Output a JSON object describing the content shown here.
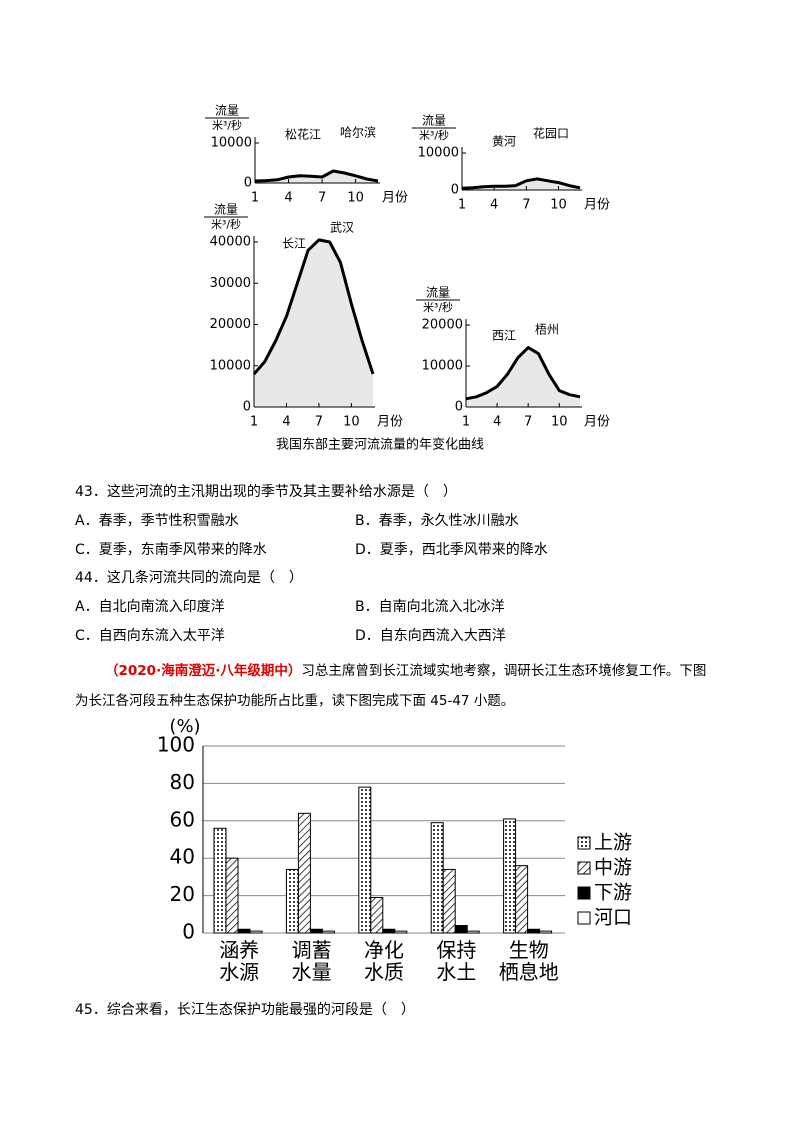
{
  "chart_data": [
    {
      "type": "line",
      "ylabel": "流量",
      "yunit": "米³/秒",
      "xlabel": "月份",
      "annotations": [
        "松花江",
        "哈尔滨"
      ],
      "x": [
        1,
        2,
        3,
        4,
        5,
        6,
        7,
        8,
        9,
        10,
        11,
        12
      ],
      "xlim": [
        1,
        12
      ],
      "xticks": [
        1,
        4,
        7,
        10
      ],
      "ylim": [
        0,
        10000
      ],
      "yticks": [
        0,
        10000
      ],
      "values": [
        500,
        600,
        800,
        1500,
        1800,
        1700,
        1500,
        3000,
        2500,
        1800,
        1000,
        500
      ]
    },
    {
      "type": "line",
      "ylabel": "流量",
      "yunit": "米³/秒",
      "xlabel": "月份",
      "annotations": [
        "黄河",
        "花园口"
      ],
      "x": [
        1,
        2,
        3,
        4,
        5,
        6,
        7,
        8,
        9,
        10,
        11,
        12
      ],
      "xlim": [
        1,
        12
      ],
      "xticks": [
        1,
        4,
        7,
        10
      ],
      "ylim": [
        0,
        10000
      ],
      "yticks": [
        0,
        10000
      ],
      "values": [
        500,
        600,
        900,
        1000,
        1000,
        1200,
        2500,
        3000,
        2500,
        2000,
        1200,
        600
      ]
    },
    {
      "type": "line",
      "ylabel": "流量",
      "yunit": "米³/秒",
      "xlabel": "月份",
      "annotations": [
        "长江",
        "武汉"
      ],
      "x": [
        1,
        2,
        3,
        4,
        5,
        6,
        7,
        8,
        9,
        10,
        11,
        12
      ],
      "xlim": [
        1,
        12
      ],
      "xticks": [
        1,
        4,
        7,
        10
      ],
      "ylim": [
        0,
        40000
      ],
      "yticks": [
        0,
        10000,
        20000,
        30000,
        40000
      ],
      "values": [
        8000,
        11000,
        16000,
        22000,
        30000,
        38000,
        40500,
        40000,
        35000,
        25000,
        16000,
        8000
      ]
    },
    {
      "type": "line",
      "ylabel": "流量",
      "yunit": "米³/秒",
      "xlabel": "月份",
      "annotations": [
        "西江",
        "梧州"
      ],
      "x": [
        1,
        2,
        3,
        4,
        5,
        6,
        7,
        8,
        9,
        10,
        11,
        12
      ],
      "xlim": [
        1,
        12
      ],
      "xticks": [
        1,
        4,
        7,
        10
      ],
      "ylim": [
        0,
        20000
      ],
      "yticks": [
        0,
        10000,
        20000
      ],
      "values": [
        2000,
        2500,
        3500,
        5000,
        8000,
        12000,
        14500,
        13000,
        8000,
        4000,
        3000,
        2500
      ]
    },
    {
      "type": "bar",
      "ylabel": "(%)",
      "categories": [
        "涵养\n水源",
        "调蓄\n水量",
        "净化\n水质",
        "保持\n水土",
        "生物\n栖息地"
      ],
      "ylim": [
        0,
        100
      ],
      "yticks": [
        0,
        20,
        40,
        60,
        80,
        100
      ],
      "grid": true,
      "series": [
        {
          "name": "上游",
          "pattern": "dots",
          "color": "#000000",
          "values": [
            56,
            34,
            78,
            59,
            61
          ]
        },
        {
          "name": "中游",
          "pattern": "hatch",
          "color": "#000000",
          "values": [
            40,
            64,
            19,
            34,
            36
          ]
        },
        {
          "name": "下游",
          "pattern": "solid",
          "color": "#000000",
          "values": [
            2,
            2,
            2,
            4,
            2
          ]
        },
        {
          "name": "河口",
          "pattern": "none",
          "color": "#000000",
          "values": [
            1,
            1,
            1,
            1,
            1
          ]
        }
      ]
    }
  ],
  "figure_caption": "我国东部主要河流流量的年变化曲线",
  "questions": [
    {
      "text": "43．这些河流的主汛期出现的季节及其主要补给水源是（　）",
      "options": [
        "A．春季，季节性积雪融水",
        "B．春季，永久性冰川融水",
        "C．夏季，东南季风带来的降水",
        "D．夏季，西北季风带来的降水"
      ]
    },
    {
      "text": "44．这几条河流共同的流向是（　）",
      "options": [
        "A．自北向南流入印度洋",
        "B．自南向北流入北冰洋",
        "C．自西向东流入太平洋",
        "D．自东向西流入大西洋"
      ]
    }
  ],
  "intro": {
    "source": "（2020·海南澄迈·八年级期中）",
    "text": "习总主席曾到长江流域实地考察，调研长江生态环境修复工作。下图为长江各河段五种生态保护功能所占比重，读下图完成下面 45-47 小题。"
  },
  "question45": "45．综合来看，长江生态保护功能最强的河段是（　）"
}
